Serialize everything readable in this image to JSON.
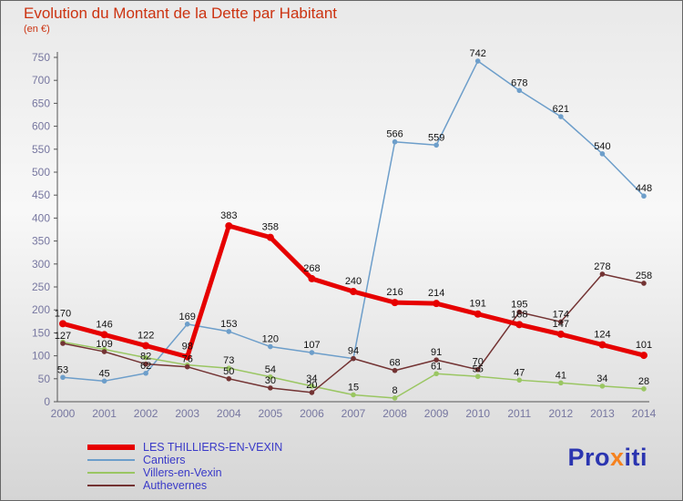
{
  "title": "Evolution du Montant de la Dette par Habitant",
  "subtitle": "(en €)",
  "colors": {
    "title": "#cc3311",
    "subtitle": "#cc3311",
    "tick": "#7777a0",
    "label": "#111111",
    "axis": "#555555",
    "legend_text": "#3a3ac8",
    "logo_blue": "#2b35b0",
    "logo_orange": "#f58220"
  },
  "chart_data": {
    "type": "line",
    "title": "Evolution du Montant de la Dette par Habitant",
    "ylabel": "(en €)",
    "x": [
      2000,
      2001,
      2002,
      2003,
      2004,
      2005,
      2006,
      2007,
      2008,
      2009,
      2010,
      2011,
      2012,
      2013,
      2014
    ],
    "ylim": [
      0,
      750
    ],
    "ytick_step": 50,
    "grid": false,
    "legend_position": "bottom-left",
    "draw_order": [
      1,
      2,
      3,
      0
    ],
    "series": [
      {
        "name": "LES THILLIERS-EN-VEXIN",
        "color": "#e60000",
        "width": 5,
        "values": [
          170,
          146,
          122,
          98,
          383,
          358,
          268,
          240,
          216,
          214,
          191,
          168,
          147,
          124,
          101
        ],
        "labels": [
          170,
          146,
          122,
          98,
          383,
          358,
          268,
          240,
          216,
          214,
          191,
          168,
          147,
          124,
          101
        ]
      },
      {
        "name": "Cantiers",
        "color": "#6d9eca",
        "width": 1.5,
        "values": [
          53,
          45,
          62,
          169,
          153,
          120,
          107,
          94,
          566,
          559,
          742,
          678,
          621,
          540,
          448
        ],
        "labels": [
          53,
          45,
          62,
          169,
          153,
          120,
          107,
          94,
          566,
          559,
          742,
          678,
          621,
          540,
          448
        ]
      },
      {
        "name": "Villers-en-Vexin",
        "color": "#9ac662",
        "width": 1.5,
        "values": [
          130,
          114,
          96,
          80,
          73,
          54,
          34,
          15,
          8,
          61,
          55,
          47,
          41,
          34,
          28
        ],
        "labels": [
          null,
          null,
          null,
          null,
          73,
          54,
          34,
          15,
          8,
          61,
          55,
          47,
          41,
          34,
          28
        ]
      },
      {
        "name": "Authevernes",
        "color": "#733333",
        "width": 1.5,
        "values": [
          127,
          109,
          82,
          76,
          50,
          30,
          20,
          94,
          68,
          91,
          70,
          195,
          174,
          278,
          258
        ],
        "labels": [
          127,
          109,
          82,
          76,
          50,
          30,
          20,
          null,
          68,
          91,
          70,
          195,
          174,
          278,
          258
        ]
      }
    ]
  },
  "logo": {
    "pro": "Pro",
    "x": "x",
    "iti": "iti"
  }
}
